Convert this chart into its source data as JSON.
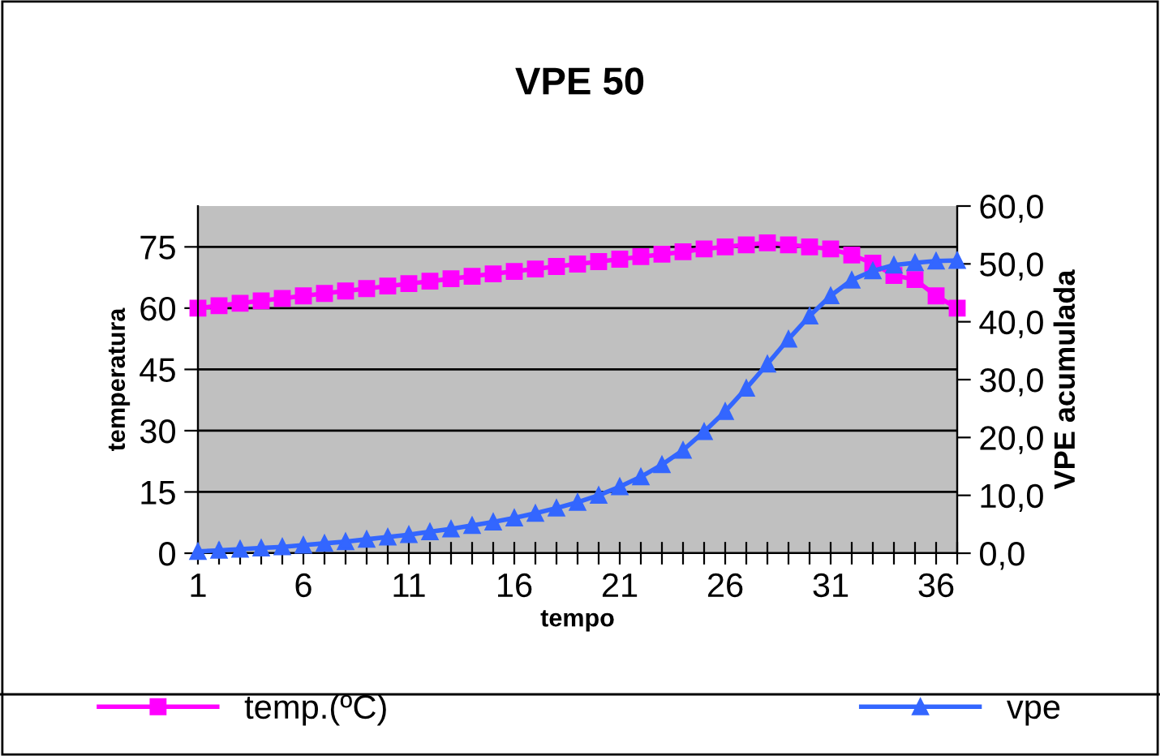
{
  "chart_data": {
    "type": "line",
    "title": "VPE 50",
    "xlabel": "tempo",
    "ylabel": "temperatura",
    "y2label": "VPE acumulada",
    "x": [
      1,
      2,
      3,
      4,
      5,
      6,
      7,
      8,
      9,
      10,
      11,
      12,
      13,
      14,
      15,
      16,
      17,
      18,
      19,
      20,
      21,
      22,
      23,
      24,
      25,
      26,
      27,
      28,
      29,
      30,
      31,
      32,
      33,
      34,
      35,
      36,
      37
    ],
    "series": [
      {
        "name": "temp.(ºC)",
        "color": "#ff00ff",
        "marker": "square",
        "values": [
          60.0,
          60.6,
          61.2,
          61.8,
          62.4,
          63.0,
          63.6,
          64.2,
          64.8,
          65.4,
          66.0,
          66.6,
          67.2,
          67.8,
          68.4,
          69.0,
          69.6,
          70.2,
          70.8,
          71.4,
          72.0,
          72.6,
          73.2,
          73.8,
          74.5,
          75.0,
          75.5,
          76.0,
          75.5,
          75.0,
          74.5,
          73.0,
          71.0,
          68.0,
          67.0,
          63.0,
          60.0
        ]
      },
      {
        "name": "vpe",
        "color": "#3366ff",
        "marker": "triangle",
        "axis": "y2",
        "values": [
          0.3,
          0.5,
          0.7,
          0.9,
          1.1,
          1.4,
          1.7,
          2.0,
          2.4,
          2.8,
          3.2,
          3.7,
          4.2,
          4.8,
          5.4,
          6.1,
          6.9,
          7.8,
          8.8,
          10.0,
          11.5,
          13.2,
          15.3,
          17.8,
          21.0,
          24.5,
          28.5,
          32.7,
          37.0,
          41.0,
          44.5,
          47.2,
          48.8,
          49.8,
          50.2,
          50.5,
          50.6
        ]
      }
    ],
    "xlim": [
      1,
      37
    ],
    "xticks": [
      1,
      {
        "value": 2,
        "label": null
      },
      {
        "value": 3,
        "label": null
      },
      {
        "value": 4,
        "label": null
      },
      {
        "value": 5,
        "label": null
      },
      6,
      {
        "value": 7,
        "label": null
      },
      {
        "value": 8,
        "label": null
      },
      {
        "value": 9,
        "label": null
      },
      {
        "value": 10,
        "label": null
      },
      11,
      {
        "value": 12,
        "label": null
      },
      {
        "value": 13,
        "label": null
      },
      {
        "value": 14,
        "label": null
      },
      {
        "value": 15,
        "label": null
      },
      16,
      {
        "value": 17,
        "label": null
      },
      {
        "value": 18,
        "label": null
      },
      {
        "value": 19,
        "label": null
      },
      {
        "value": 20,
        "label": null
      },
      21,
      {
        "value": 22,
        "label": null
      },
      {
        "value": 23,
        "label": null
      },
      {
        "value": 24,
        "label": null
      },
      {
        "value": 25,
        "label": null
      },
      26,
      {
        "value": 27,
        "label": null
      },
      {
        "value": 28,
        "label": null
      },
      {
        "value": 29,
        "label": null
      },
      {
        "value": 30,
        "label": null
      },
      31,
      {
        "value": 32,
        "label": null
      },
      {
        "value": 33,
        "label": null
      },
      {
        "value": 34,
        "label": null
      },
      {
        "value": 35,
        "label": null
      },
      36,
      {
        "value": 37,
        "label": null
      }
    ],
    "ylim": [
      0,
      85
    ],
    "yticks": [
      0,
      15,
      30,
      45,
      60,
      75
    ],
    "y2lim": [
      0,
      60
    ],
    "y2ticks": [
      {
        "value": 0,
        "label": "0,0"
      },
      {
        "value": 10,
        "label": "10,0"
      },
      {
        "value": 20,
        "label": "20,0"
      },
      {
        "value": 30,
        "label": "30,0"
      },
      {
        "value": 40,
        "label": "40,0"
      },
      {
        "value": 50,
        "label": "50,0"
      },
      {
        "value": 60,
        "label": "60,0"
      }
    ],
    "grid": "y",
    "legend": "bottom",
    "line_style": "solid"
  }
}
